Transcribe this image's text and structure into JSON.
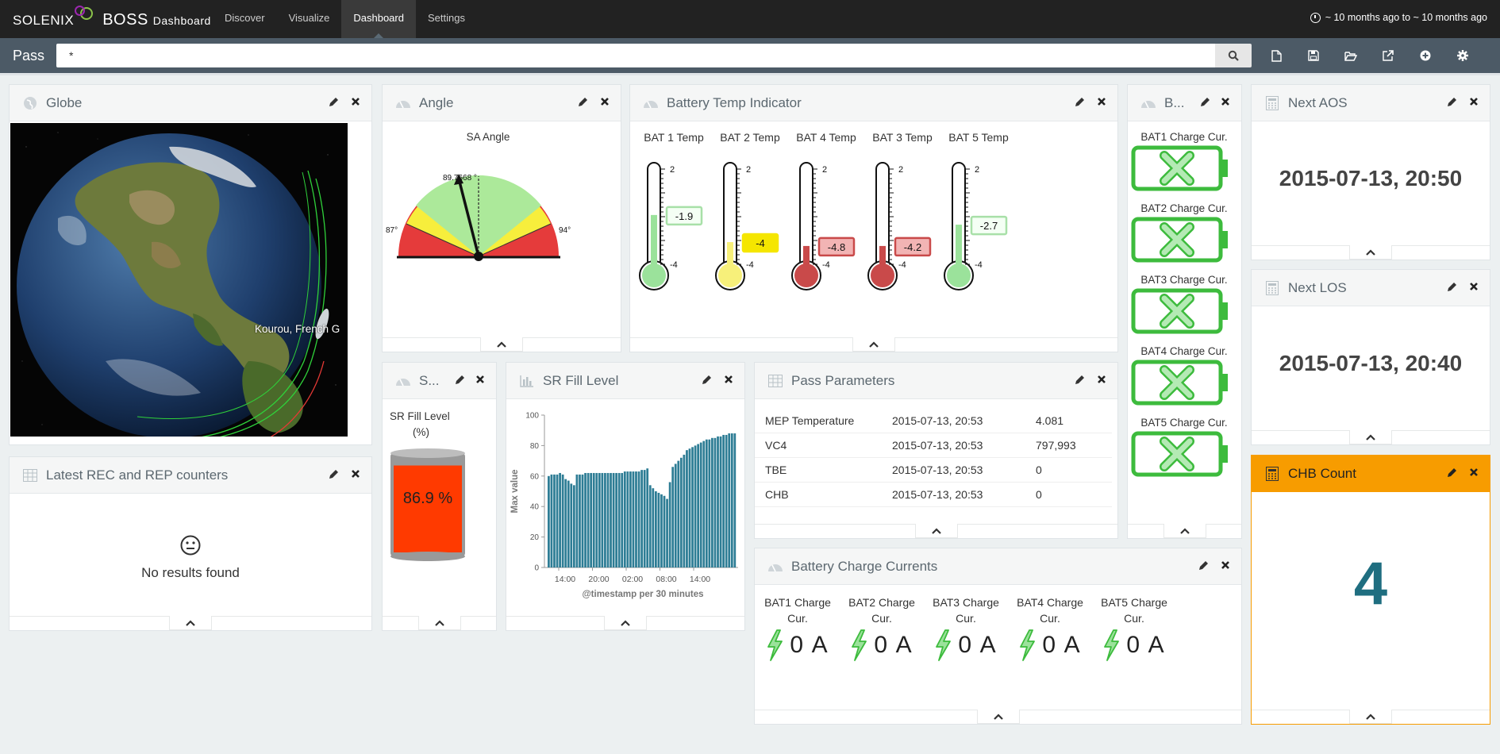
{
  "nav": {
    "brand_name": "SOLENIX",
    "brand_product": "BOSS",
    "brand_sub": "Dashboard",
    "tabs": [
      "Discover",
      "Visualize",
      "Dashboard",
      "Settings"
    ],
    "active_tab": "Dashboard",
    "time_range": "~ 10 months ago to ~ 10 months ago"
  },
  "query": {
    "label": "Pass",
    "value": "*",
    "tools": [
      "new-dashboard-icon",
      "save-icon",
      "open-icon",
      "share-icon",
      "add-panel-icon",
      "settings-icon"
    ]
  },
  "globe": {
    "title": "Globe",
    "station_label": "Kourou, French G"
  },
  "angle": {
    "title": "Angle",
    "gauge_label": "SA Angle",
    "needle_value": "89.7668 °",
    "min_label": "87°",
    "max_label": "94°",
    "value": 89.7668
  },
  "battery_temp": {
    "title": "Battery Temp Indicator",
    "scale_top": "2",
    "scale_bottom": "-4",
    "items": [
      {
        "label": "BAT 1 Temp",
        "value": "-1.9",
        "level": 0.46,
        "color": "#9be29b",
        "tag_bg": "#f4fff4",
        "tag_border": "#a8e0a8"
      },
      {
        "label": "BAT 2 Temp",
        "value": "-4",
        "level": 0.18,
        "color": "#f7f07a",
        "tag_bg": "#f5e600",
        "tag_border": "#f5e600"
      },
      {
        "label": "BAT 4 Temp",
        "value": "-4.8",
        "level": 0.14,
        "color": "#c94a4a",
        "tag_bg": "#f2b4b4",
        "tag_border": "#c94a4a"
      },
      {
        "label": "BAT 3 Temp",
        "value": "-4.2",
        "level": 0.14,
        "color": "#c94a4a",
        "tag_bg": "#f2b4b4",
        "tag_border": "#c94a4a"
      },
      {
        "label": "BAT 5 Temp",
        "value": "-2.7",
        "level": 0.36,
        "color": "#9be29b",
        "tag_bg": "#f4fff4",
        "tag_border": "#a8e0a8"
      }
    ]
  },
  "battery_status": {
    "title": "B...",
    "items": [
      "BAT1 Charge Cur.",
      "BAT2 Charge Cur.",
      "BAT3 Charge Cur.",
      "BAT4 Charge Cur.",
      "BAT5 Charge Cur."
    ]
  },
  "next_aos": {
    "title": "Next AOS",
    "value": "2015-07-13, 20:50"
  },
  "next_los": {
    "title": "Next LOS",
    "value": "2015-07-13, 20:40"
  },
  "chb": {
    "title": "CHB Count",
    "value": "4",
    "accent": "#f79c00",
    "value_color": "#1f6e80"
  },
  "rec_rep": {
    "title": "Latest REC and REP counters",
    "empty_text": "No results found"
  },
  "sr_small": {
    "title": "S...",
    "label_line1": "SR Fill Level",
    "label_line2": "(%)",
    "value": "86.9 %",
    "fill": 0.869
  },
  "sr_fill": {
    "title": "SR Fill Level"
  },
  "pass_params": {
    "title": "Pass Parameters",
    "rows": [
      [
        "MEP Temperature",
        "2015-07-13, 20:53",
        "4.081"
      ],
      [
        "VC4",
        "2015-07-13, 20:53",
        "797,993"
      ],
      [
        "TBE",
        "2015-07-13, 20:53",
        "0"
      ],
      [
        "CHB",
        "2015-07-13, 20:53",
        "0"
      ]
    ]
  },
  "charge_currents": {
    "title": "Battery Charge Currents",
    "items": [
      {
        "line1": "BAT1 Charge",
        "line2": "Cur.",
        "value": "0 A"
      },
      {
        "line1": "BAT2 Charge",
        "line2": "Cur.",
        "value": "0 A"
      },
      {
        "line1": "BAT3 Charge",
        "line2": "Cur.",
        "value": "0 A"
      },
      {
        "line1": "BAT4 Charge",
        "line2": "Cur.",
        "value": "0 A"
      },
      {
        "line1": "BAT5 Charge",
        "line2": "Cur.",
        "value": "0 A"
      }
    ]
  },
  "chart_data": {
    "type": "bar",
    "xlabel": "@timestamp per 30 minutes",
    "ylabel": "Max value",
    "ylim": [
      0,
      100
    ],
    "yticks": [
      "0",
      "20",
      "40",
      "60",
      "80",
      "100"
    ],
    "xticks": [
      "14:00",
      "20:00",
      "02:00",
      "08:00",
      "14:00"
    ],
    "values": [
      60,
      61,
      61,
      61,
      62,
      61,
      58,
      57,
      55,
      54,
      61,
      61,
      61,
      62,
      62,
      62,
      62,
      62,
      62,
      62,
      62,
      62,
      62,
      62,
      62,
      62,
      62,
      63,
      63,
      63,
      63,
      63,
      63,
      64,
      64,
      65,
      54,
      52,
      50,
      49,
      48,
      47,
      45,
      56,
      66,
      68,
      70,
      72,
      74,
      77,
      78,
      79,
      80,
      81,
      82,
      83,
      84,
      84,
      85,
      85,
      86,
      86,
      87,
      87,
      88,
      88,
      88
    ]
  }
}
